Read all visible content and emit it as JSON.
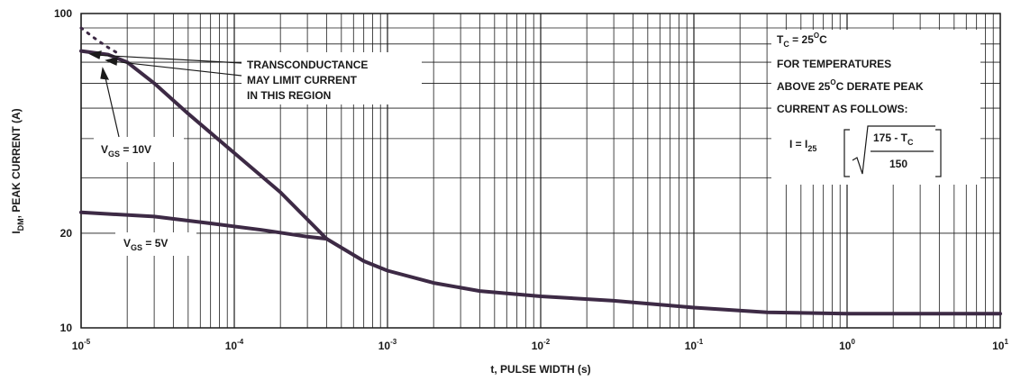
{
  "chart_data": {
    "type": "line",
    "title": "",
    "xlabel": "t, PULSE WIDTH (s)",
    "ylabel_main": "I",
    "ylabel_sub": "DM",
    "ylabel_rest": ", PEAK CURRENT (A)",
    "xscale": "log",
    "yscale": "log",
    "xlim": [
      1e-05,
      10
    ],
    "ylim": [
      10,
      100
    ],
    "grid": true,
    "x_ticks": [
      {
        "base": "10",
        "exp": "-5"
      },
      {
        "base": "10",
        "exp": "-4"
      },
      {
        "base": "10",
        "exp": "-3"
      },
      {
        "base": "10",
        "exp": "-2"
      },
      {
        "base": "10",
        "exp": "-1"
      },
      {
        "base": "10",
        "exp": "0"
      },
      {
        "base": "10",
        "exp": "1"
      }
    ],
    "y_ticks": [
      "100",
      "20",
      "10"
    ],
    "series": [
      {
        "name": "VGS = 10V",
        "x": [
          1e-05,
          1.5e-05,
          2e-05,
          3e-05,
          5e-05,
          0.0001,
          0.0002,
          0.0004,
          0.0007,
          0.001,
          0.002,
          0.004,
          0.01,
          0.03,
          0.1,
          0.3,
          1,
          3,
          10
        ],
        "y": [
          76,
          74,
          70,
          60,
          48,
          36,
          27,
          19.2,
          16.3,
          15.2,
          13.9,
          13.1,
          12.6,
          12.2,
          11.6,
          11.2,
          11.1,
          11.1,
          11.1
        ]
      },
      {
        "name": "VGS = 5V",
        "x": [
          1e-05,
          3e-05,
          7e-05,
          0.00015,
          0.0003,
          0.0004
        ],
        "y": [
          23.3,
          22.6,
          21.5,
          20.5,
          19.5,
          19.2
        ]
      },
      {
        "name": "transconductance-limit",
        "x": [
          1e-05,
          1.2e-05,
          1.5e-05,
          1.8e-05
        ],
        "y": [
          90,
          84,
          78,
          74
        ]
      }
    ],
    "annotations": {
      "transconductance": [
        "TRANSCONDUCTANCE",
        "MAY LIMIT CURRENT",
        "IN THIS REGION"
      ],
      "vgs10": {
        "main": "V",
        "sub": "GS",
        "rest": " = 10V"
      },
      "vgs5": {
        "main": "V",
        "sub": "GS",
        "rest": " = 5V"
      },
      "tc_line": {
        "main": "T",
        "sub": "C",
        "mid": " = 25",
        "sup": "O",
        "rest": "C"
      },
      "derate1": "FOR TEMPERATURES",
      "derate2_a": "ABOVE 25",
      "derate2_sup": "O",
      "derate2_b": "C DERATE PEAK",
      "derate3": "CURRENT AS FOLLOWS:",
      "formula_lhs_a": "I = I",
      "formula_lhs_sub": "25",
      "formula_num_a": "175 - T",
      "formula_num_sub": "C",
      "formula_den": "150"
    }
  }
}
